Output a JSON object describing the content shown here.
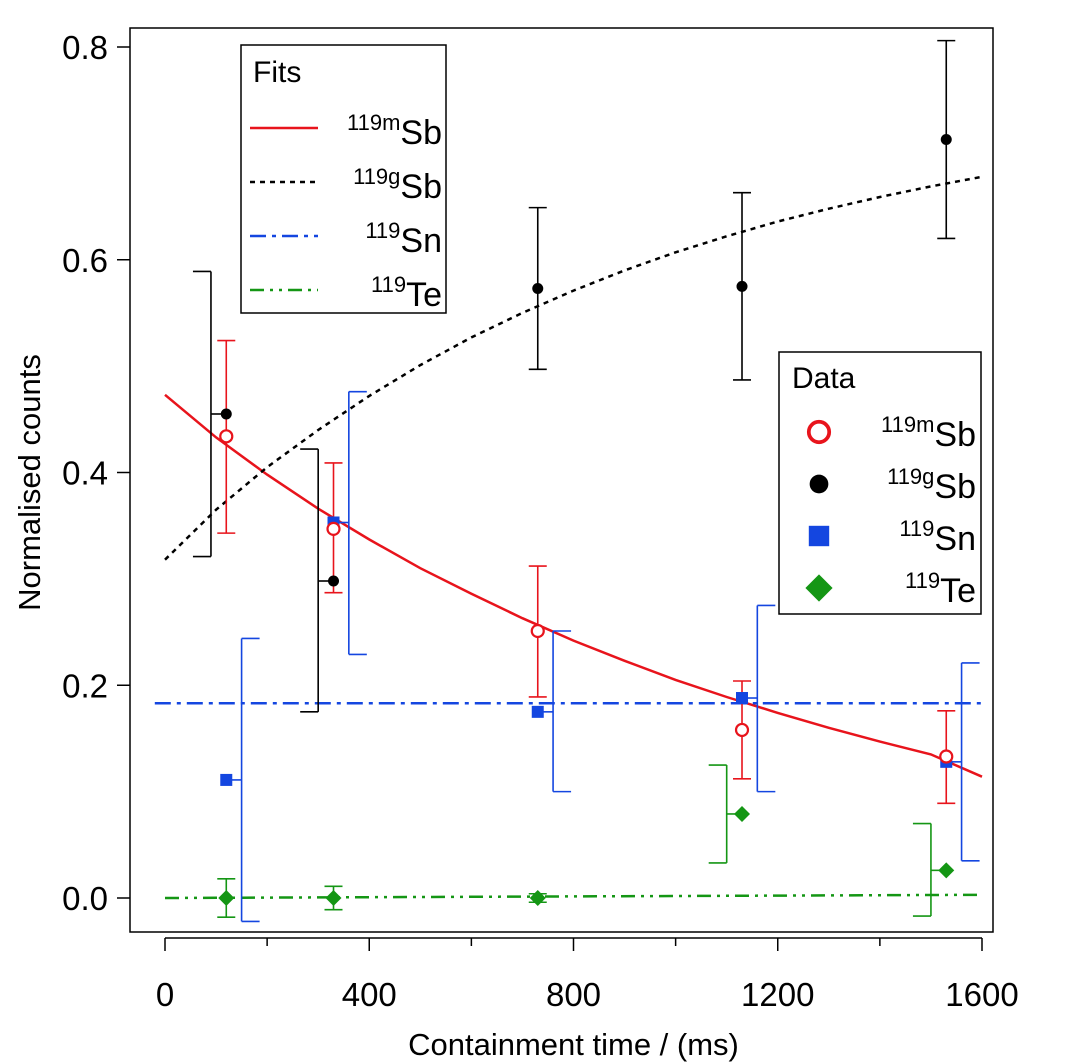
{
  "chart_data": {
    "type": "scatter",
    "xlabel": "Containment time / (ms)",
    "ylabel": "Normalised counts",
    "xlim": [
      -20,
      1620
    ],
    "ylim": [
      -0.035,
      0.805
    ],
    "xticks": [
      0,
      400,
      800,
      1200,
      1600
    ],
    "xticks_minor": [
      200,
      600,
      1000,
      1400
    ],
    "yticks": [
      0.0,
      0.2,
      0.4,
      0.6,
      0.8
    ],
    "x_tick_labels": [
      "0",
      "400",
      "800",
      "1200",
      "1600"
    ],
    "y_tick_labels": [
      "0.0",
      "0.2",
      "0.4",
      "0.6",
      "0.8"
    ],
    "grid": false,
    "legends": {
      "fits": {
        "title": "Fits",
        "placement": "top-left",
        "entries": [
          {
            "sup": "119m",
            "base": "Sb"
          },
          {
            "sup": "119g",
            "base": "Sb"
          },
          {
            "sup": "119",
            "base": "Sn"
          },
          {
            "sup": "119",
            "base": "Te"
          }
        ]
      },
      "data": {
        "title": "Data",
        "placement": "right",
        "entries": [
          {
            "sup": "119m",
            "base": "Sb"
          },
          {
            "sup": "119g",
            "base": "Sb"
          },
          {
            "sup": "119",
            "base": "Sn"
          },
          {
            "sup": "119",
            "base": "Te"
          }
        ]
      }
    },
    "colors": {
      "sb119m": "#e8141c",
      "sb119g": "#000000",
      "sn119": "#1446e0",
      "te119": "#149614"
    },
    "series": [
      {
        "key": "sb119m",
        "marker": "open-circle",
        "points": [
          {
            "x": 120,
            "y": 0.434,
            "ylo": 0.343,
            "yhi": 0.524,
            "lx": 120,
            "ldir": 0
          },
          {
            "x": 330,
            "y": 0.347,
            "ylo": 0.287,
            "yhi": 0.409,
            "lx": 330,
            "ldir": 0
          },
          {
            "x": 730,
            "y": 0.251,
            "ylo": 0.189,
            "yhi": 0.312,
            "lx": 730,
            "ldir": 0
          },
          {
            "x": 1130,
            "y": 0.158,
            "ylo": 0.112,
            "yhi": 0.204,
            "lx": 1130,
            "ldir": 0
          },
          {
            "x": 1530,
            "y": 0.133,
            "ylo": 0.089,
            "yhi": 0.176,
            "lx": 1530,
            "ldir": 0
          }
        ]
      },
      {
        "key": "sb119g",
        "marker": "filled-circle",
        "points": [
          {
            "x": 120,
            "y": 0.455,
            "ylo": 0.321,
            "yhi": 0.589,
            "lx": 90,
            "ldir": 1
          },
          {
            "x": 330,
            "y": 0.298,
            "ylo": 0.175,
            "yhi": 0.422,
            "lx": 300,
            "ldir": 1
          },
          {
            "x": 730,
            "y": 0.573,
            "ylo": 0.497,
            "yhi": 0.649,
            "lx": 730,
            "ldir": 0
          },
          {
            "x": 1130,
            "y": 0.575,
            "ylo": 0.487,
            "yhi": 0.663,
            "lx": 1130,
            "ldir": 0
          },
          {
            "x": 1530,
            "y": 0.713,
            "ylo": 0.62,
            "yhi": 0.806,
            "lx": 1530,
            "ldir": 0
          }
        ]
      },
      {
        "key": "sn119",
        "marker": "filled-square",
        "points": [
          {
            "x": 120,
            "y": 0.111,
            "ylo": -0.022,
            "yhi": 0.244,
            "lx": 150,
            "ldir": -1
          },
          {
            "x": 330,
            "y": 0.353,
            "ylo": 0.229,
            "yhi": 0.476,
            "lx": 360,
            "ldir": -1
          },
          {
            "x": 730,
            "y": 0.175,
            "ylo": 0.1,
            "yhi": 0.251,
            "lx": 760,
            "ldir": -1
          },
          {
            "x": 1130,
            "y": 0.188,
            "ylo": 0.1,
            "yhi": 0.275,
            "lx": 1160,
            "ldir": -1
          },
          {
            "x": 1530,
            "y": 0.128,
            "ylo": 0.035,
            "yhi": 0.221,
            "lx": 1560,
            "ldir": -1
          }
        ]
      },
      {
        "key": "te119",
        "marker": "filled-diamond",
        "points": [
          {
            "x": 120,
            "y": 0.0,
            "ylo": -0.018,
            "yhi": 0.018,
            "lx": 120,
            "ldir": 0
          },
          {
            "x": 330,
            "y": 0.0,
            "ylo": -0.011,
            "yhi": 0.011,
            "lx": 330,
            "ldir": 0
          },
          {
            "x": 730,
            "y": 0.0,
            "ylo": -0.004,
            "yhi": 0.004,
            "lx": 730,
            "ldir": 0
          },
          {
            "x": 1130,
            "y": 0.079,
            "ylo": 0.033,
            "yhi": 0.125,
            "lx": 1100,
            "ldir": 1
          },
          {
            "x": 1530,
            "y": 0.026,
            "ylo": -0.017,
            "yhi": 0.07,
            "lx": 1500,
            "ldir": 1
          }
        ]
      }
    ],
    "fits": [
      {
        "key": "sb119m",
        "style": "solid",
        "x": [
          0,
          100,
          200,
          300,
          400,
          500,
          600,
          700,
          800,
          900,
          1000,
          1100,
          1200,
          1300,
          1400,
          1500,
          1600
        ],
        "y": [
          0.473,
          0.433,
          0.398,
          0.366,
          0.337,
          0.31,
          0.286,
          0.263,
          0.242,
          0.223,
          0.205,
          0.189,
          0.174,
          0.16,
          0.147,
          0.135,
          0.114
        ]
      },
      {
        "key": "sb119g",
        "style": "dotted",
        "x": [
          0,
          100,
          200,
          300,
          400,
          500,
          600,
          700,
          800,
          900,
          1000,
          1100,
          1200,
          1300,
          1400,
          1500,
          1600
        ],
        "y": [
          0.318,
          0.365,
          0.405,
          0.44,
          0.472,
          0.501,
          0.527,
          0.55,
          0.571,
          0.59,
          0.607,
          0.622,
          0.636,
          0.648,
          0.659,
          0.669,
          0.678
        ]
      },
      {
        "key": "sn119",
        "style": "dash-dot",
        "x": [
          -20,
          1600
        ],
        "y": [
          0.183,
          0.183
        ]
      },
      {
        "key": "te119",
        "style": "dash-dot-dot",
        "x": [
          0,
          1600
        ],
        "y": [
          0.0,
          0.003
        ]
      }
    ]
  }
}
